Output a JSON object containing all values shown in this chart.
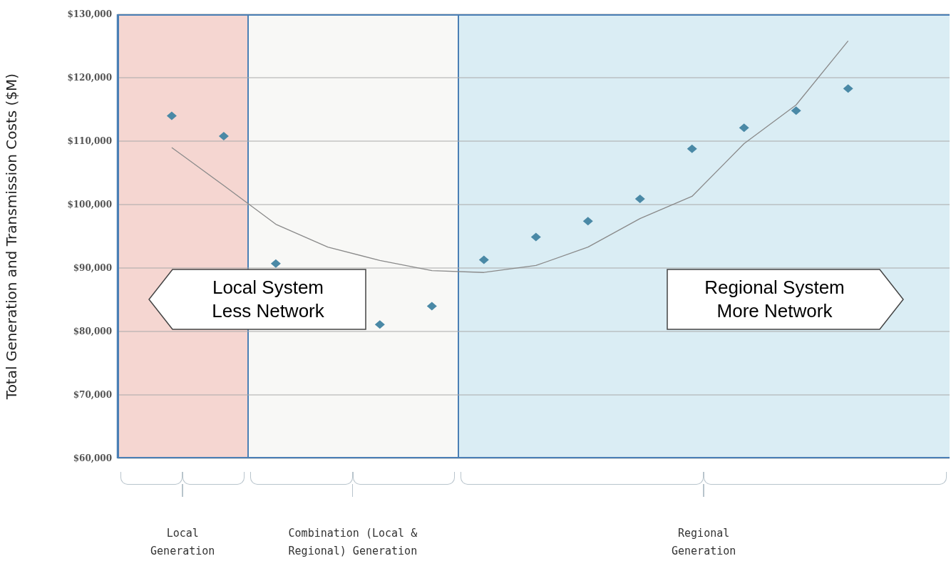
{
  "chart_data": {
    "type": "scatter",
    "ylabel": "Total Generation and Transmission Costs ($M)",
    "categories": [
      null,
      null,
      null,
      null,
      null,
      null,
      null,
      null,
      null,
      null,
      null,
      null,
      null,
      null
    ],
    "ylim": [
      60000,
      130000
    ],
    "yticks": [
      {
        "value": 60000,
        "label": "$60,000"
      },
      {
        "value": 70000,
        "label": "$70,000"
      },
      {
        "value": 80000,
        "label": "$80,000"
      },
      {
        "value": 90000,
        "label": "$90,000"
      },
      {
        "value": 100000,
        "label": "$100,000"
      },
      {
        "value": 110000,
        "label": "$110,000"
      },
      {
        "value": 120000,
        "label": "$120,000"
      },
      {
        "value": 130000,
        "label": "$130,000"
      }
    ],
    "tick_labels": "y",
    "grid": "y",
    "legend": false,
    "series": [
      {
        "marker": "diamond",
        "color": "#4a89a6",
        "values": [
          114000,
          110800,
          90700,
          null,
          81100,
          84000,
          91300,
          94900,
          97400,
          100900,
          108800,
          112100,
          114800,
          118300
        ]
      },
      {
        "type": "line",
        "marker": "none",
        "color": "#8a8a8a",
        "values": [
          109000,
          103000,
          96900,
          93300,
          91200,
          89600,
          89300,
          90400,
          93300,
          97800,
          101300,
          109600,
          115700,
          125800
        ]
      }
    ],
    "annotations": [
      "Local System\nLess Network",
      "Regional System\nMore Network",
      "Local\nGeneration",
      "Combination (Local &\nRegional) Generation",
      "Regional\nGeneration"
    ]
  }
}
